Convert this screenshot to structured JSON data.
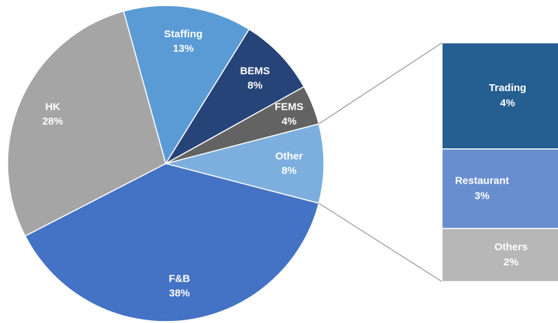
{
  "chart_data": {
    "type": "pie",
    "categories": [
      "Other",
      "F&B",
      "HK",
      "Staffing",
      "BEMS",
      "FEMS"
    ],
    "values": [
      8,
      38,
      28,
      13,
      8,
      4
    ],
    "value_labels": [
      "8%",
      "38%",
      "28%",
      "13%",
      "8%",
      "4%"
    ],
    "colors": [
      "#7cafdd",
      "#4472c4",
      "#a5a5a5",
      "#5b9bd5",
      "#264478",
      "#636363"
    ],
    "breakdown": {
      "categories": [
        "Trading",
        "Restaurant",
        "Others"
      ],
      "values": [
        4,
        3,
        2
      ],
      "value_labels": [
        "4%",
        "3%",
        "2%"
      ],
      "colors": [
        "#255e91",
        "#698ed0",
        "#b7b7b7"
      ]
    }
  }
}
